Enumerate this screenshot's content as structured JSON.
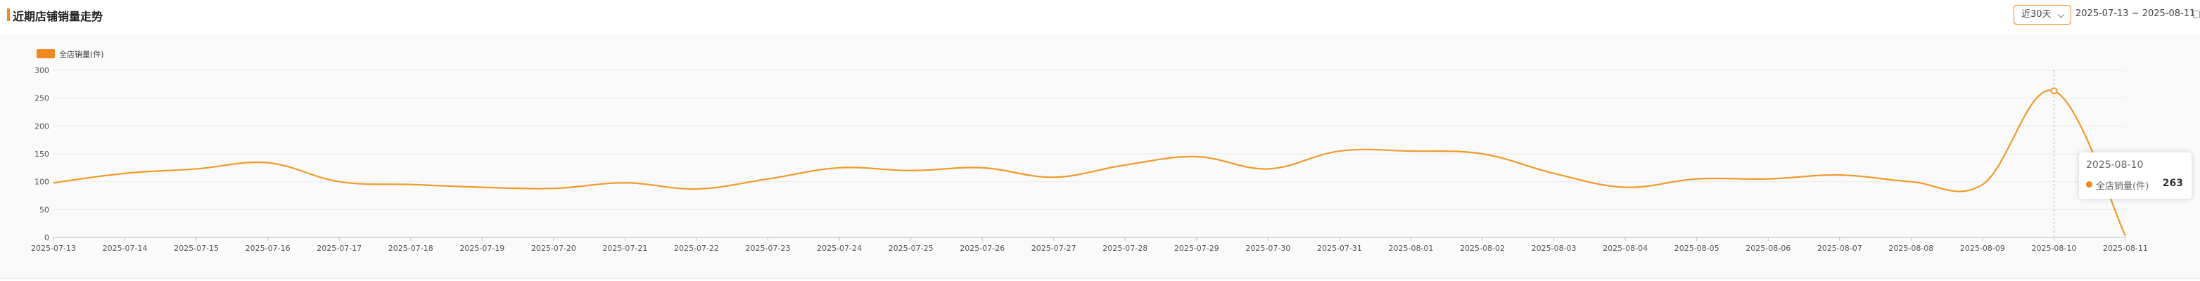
{
  "header": {
    "title": "近期店铺销量走势",
    "range_select": "近30天",
    "date_range": "2025-07-13 ~ 2025-08-11"
  },
  "colors": {
    "accent": "#f08a1c",
    "line": "#f09a2a"
  },
  "icons": {
    "range_chevron": "chevron-down-icon",
    "calendar": "calendar-icon"
  },
  "chart_data": {
    "type": "line",
    "title": "",
    "xlabel": "",
    "ylabel": "",
    "legend": "top-left",
    "grid": true,
    "ylim": [
      0,
      300
    ],
    "y_ticks": [
      0,
      50,
      100,
      150,
      200,
      250,
      300
    ],
    "categories": [
      "2025-07-13",
      "2025-07-14",
      "2025-07-15",
      "2025-07-16",
      "2025-07-17",
      "2025-07-18",
      "2025-07-19",
      "2025-07-20",
      "2025-07-21",
      "2025-07-22",
      "2025-07-23",
      "2025-07-24",
      "2025-07-25",
      "2025-07-26",
      "2025-07-27",
      "2025-07-28",
      "2025-07-29",
      "2025-07-30",
      "2025-07-31",
      "2025-08-01",
      "2025-08-02",
      "2025-08-03",
      "2025-08-04",
      "2025-08-05",
      "2025-08-06",
      "2025-08-07",
      "2025-08-08",
      "2025-08-09",
      "2025-08-10",
      "2025-08-11"
    ],
    "series": [
      {
        "name": "全店销量(件)",
        "values": [
          98,
          115,
          123,
          134,
          100,
          95,
          90,
          88,
          98,
          87,
          105,
          125,
          120,
          125,
          108,
          130,
          145,
          123,
          155,
          155,
          150,
          115,
          90,
          105,
          105,
          112,
          100,
          95,
          263,
          3
        ]
      }
    ],
    "tooltip": {
      "date": "2025-08-10",
      "series": "全店销量(件)",
      "value": "263"
    }
  }
}
